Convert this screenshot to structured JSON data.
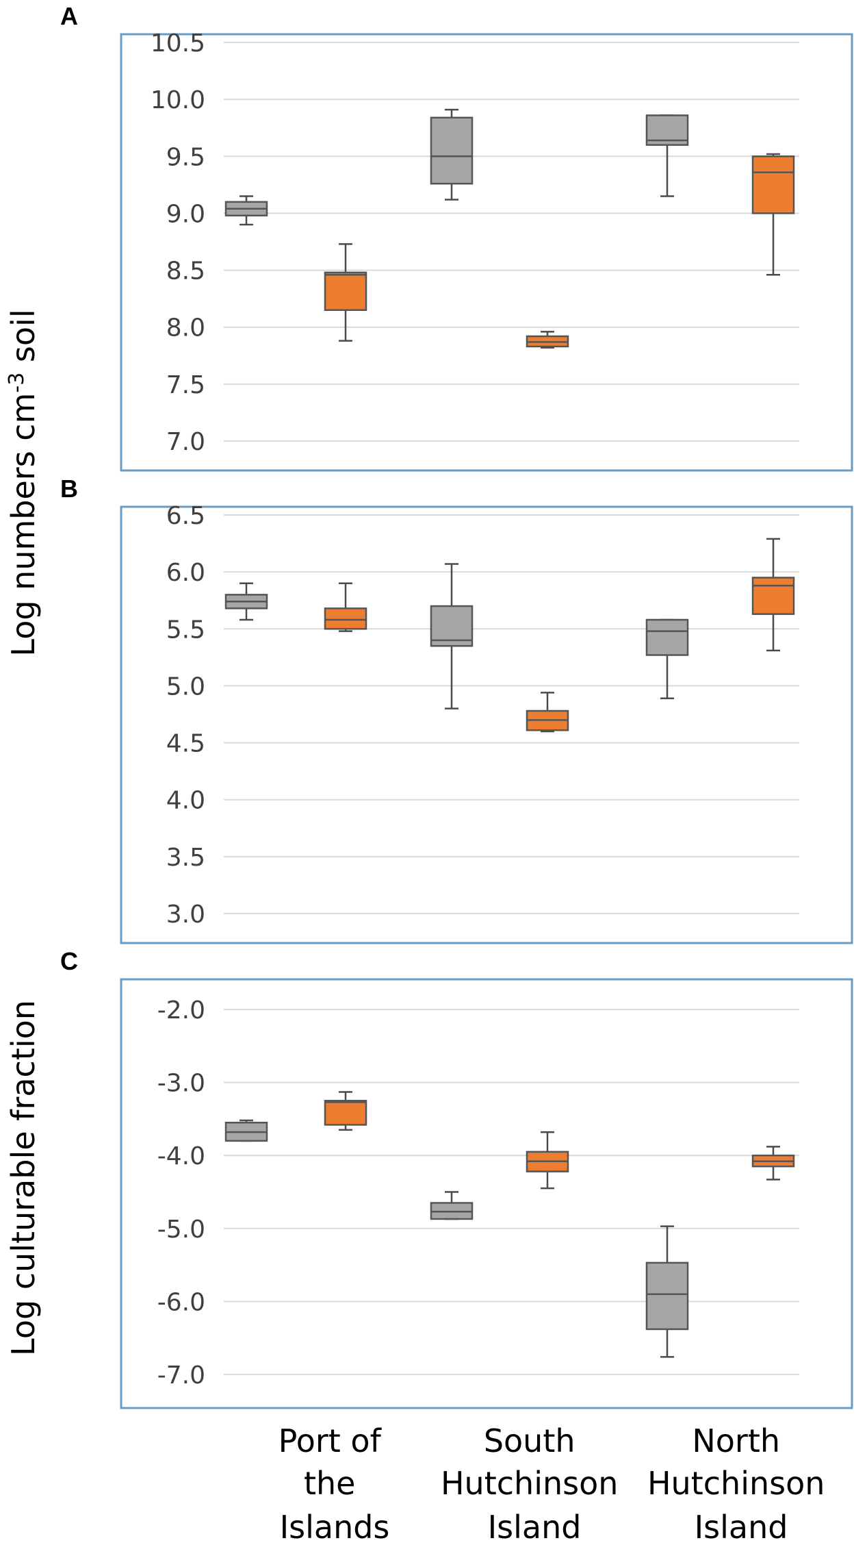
{
  "figure": {
    "ylabel_top": "Log numbers cm",
    "ylabel_top_sup": "-3",
    "ylabel_top_suffix": " soil",
    "ylabel_bottom": "Log culturable fraction",
    "colors": {
      "gray": "#a6a6a6",
      "orange": "#ed7d31"
    }
  },
  "chart_data": [
    {
      "type": "box",
      "panel": "A",
      "categories": [
        "Port of the Islands",
        "South Hutchinson Island",
        "North Hutchinson Island"
      ],
      "ylim": [
        7.0,
        10.5
      ],
      "yticks": [
        "10.5",
        "10.0",
        "9.5",
        "9.0",
        "8.5",
        "8.0",
        "7.5",
        "7.0"
      ],
      "grid": true,
      "series": [
        {
          "name": "gray",
          "boxes": [
            {
              "min": 8.9,
              "q1": 8.98,
              "median": 9.04,
              "q3": 9.1,
              "max": 9.15
            },
            {
              "min": 9.12,
              "q1": 9.26,
              "median": 9.5,
              "q3": 9.84,
              "max": 9.91
            },
            {
              "min": 9.15,
              "q1": 9.6,
              "median": 9.64,
              "q3": 9.86,
              "max": 9.86
            }
          ]
        },
        {
          "name": "orange",
          "boxes": [
            {
              "min": 7.88,
              "q1": 8.15,
              "median": 8.46,
              "q3": 8.48,
              "max": 8.73
            },
            {
              "min": 7.82,
              "q1": 7.83,
              "median": 7.87,
              "q3": 7.92,
              "max": 7.96
            },
            {
              "min": 8.46,
              "q1": 9.0,
              "median": 9.36,
              "q3": 9.5,
              "max": 9.52
            }
          ]
        }
      ]
    },
    {
      "type": "box",
      "panel": "B",
      "categories": [
        "Port of the Islands",
        "South Hutchinson Island",
        "North Hutchinson Island"
      ],
      "ylim": [
        3.0,
        6.5
      ],
      "yticks": [
        "6.5",
        "6.0",
        "5.5",
        "5.0",
        "4.5",
        "4.0",
        "3.5",
        "3.0"
      ],
      "grid": true,
      "series": [
        {
          "name": "gray",
          "boxes": [
            {
              "min": 5.58,
              "q1": 5.68,
              "median": 5.74,
              "q3": 5.8,
              "max": 5.9
            },
            {
              "min": 4.8,
              "q1": 5.35,
              "median": 5.4,
              "q3": 5.7,
              "max": 6.07
            },
            {
              "min": 4.89,
              "q1": 5.27,
              "median": 5.48,
              "q3": 5.58,
              "max": 5.58
            }
          ]
        },
        {
          "name": "orange",
          "boxes": [
            {
              "min": 5.48,
              "q1": 5.5,
              "median": 5.58,
              "q3": 5.68,
              "max": 5.9
            },
            {
              "min": 4.6,
              "q1": 4.61,
              "median": 4.7,
              "q3": 4.78,
              "max": 4.94
            },
            {
              "min": 5.31,
              "q1": 5.63,
              "median": 5.88,
              "q3": 5.95,
              "max": 6.29
            }
          ]
        }
      ]
    },
    {
      "type": "box",
      "panel": "C",
      "categories": [
        "Port of the Islands",
        "South Hutchinson Island",
        "North Hutchinson Island"
      ],
      "ylim": [
        -7.0,
        -2.0
      ],
      "yticks": [
        "-2.0",
        "-3.0",
        "-4.0",
        "-5.0",
        "-6.0",
        "-7.0"
      ],
      "grid": true,
      "series": [
        {
          "name": "gray",
          "boxes": [
            {
              "min": -3.8,
              "q1": -3.8,
              "median": -3.68,
              "q3": -3.55,
              "max": -3.52
            },
            {
              "min": -4.87,
              "q1": -4.87,
              "median": -4.77,
              "q3": -4.65,
              "max": -4.5
            },
            {
              "min": -6.76,
              "q1": -6.38,
              "median": -5.9,
              "q3": -5.47,
              "max": -4.97
            }
          ]
        },
        {
          "name": "orange",
          "boxes": [
            {
              "min": -3.65,
              "q1": -3.58,
              "median": -3.27,
              "q3": -3.25,
              "max": -3.13
            },
            {
              "min": -4.45,
              "q1": -4.22,
              "median": -4.08,
              "q3": -3.95,
              "max": -3.68
            },
            {
              "min": -4.33,
              "q1": -4.15,
              "median": -4.08,
              "q3": -4.0,
              "max": -3.88
            }
          ]
        }
      ]
    }
  ],
  "x_category_labels": [
    [
      "Port of",
      "the",
      "Islands"
    ],
    [
      "South",
      "Hutchinson",
      "Island"
    ],
    [
      "North",
      "Hutchinson",
      "Island"
    ]
  ]
}
